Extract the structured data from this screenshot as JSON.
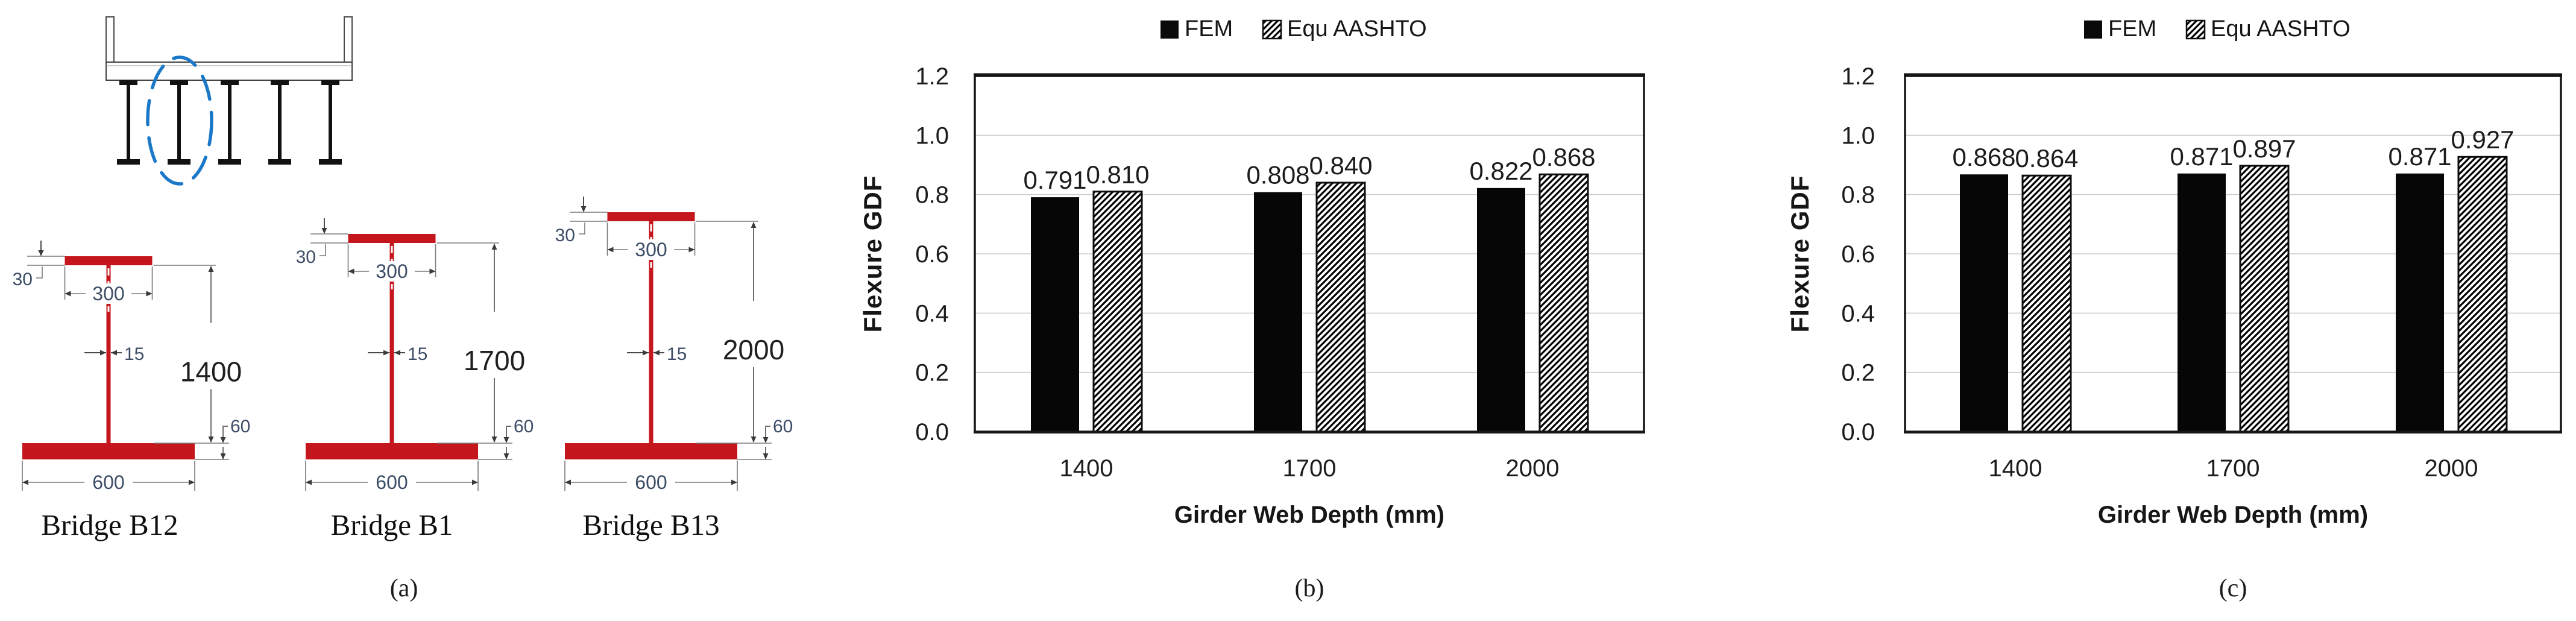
{
  "figure": {
    "background": "#ffffff"
  },
  "panel_a": {
    "caption": "(a)",
    "cross_section": {
      "description": "bridge-deck-cross-section-with-five-steel-i-girders",
      "girder_count": 5,
      "highlighted_girder": 2,
      "highlight_color": "#1b78c8"
    },
    "steel_color": "#c4161c",
    "dim_text_color": "#3d4d66",
    "depth_text_color": "#1f1f1f",
    "beams": [
      {
        "name": "Bridge B12",
        "web_depth_label": "1400",
        "top_flange_width_label": "300",
        "top_flange_thickness_label": "30",
        "web_thickness_label": "15",
        "bottom_flange_thickness_label": "60",
        "bottom_flange_width_label": "600"
      },
      {
        "name": "Bridge B1",
        "web_depth_label": "1700",
        "top_flange_width_label": "300",
        "top_flange_thickness_label": "30",
        "web_thickness_label": "15",
        "bottom_flange_thickness_label": "60",
        "bottom_flange_width_label": "600"
      },
      {
        "name": "Bridge B13",
        "web_depth_label": "2000",
        "top_flange_width_label": "300",
        "top_flange_thickness_label": "30",
        "web_thickness_label": "15",
        "bottom_flange_thickness_label": "60",
        "bottom_flange_width_label": "600"
      }
    ]
  },
  "chart_data": [
    {
      "id": "b",
      "type": "bar",
      "caption": "(b)",
      "categories": [
        "1400",
        "1700",
        "2000"
      ],
      "series": [
        {
          "name": "FEM",
          "pattern": "solid",
          "values": [
            0.791,
            0.808,
            0.822
          ]
        },
        {
          "name": "Equ AASHTO",
          "pattern": "hatch",
          "values": [
            0.81,
            0.84,
            0.868
          ]
        }
      ],
      "xlabel": "Girder Web Depth (mm)",
      "ylabel": "Flexure GDF",
      "ylim": [
        0.0,
        1.2
      ],
      "ytick_step": 0.2,
      "grid": true,
      "legend_position": "top",
      "value_label_decimals": 3
    },
    {
      "id": "c",
      "type": "bar",
      "caption": "(c)",
      "categories": [
        "1400",
        "1700",
        "2000"
      ],
      "series": [
        {
          "name": "FEM",
          "pattern": "solid",
          "values": [
            0.868,
            0.871,
            0.871
          ]
        },
        {
          "name": "Equ AASHTO",
          "pattern": "hatch",
          "values": [
            0.864,
            0.897,
            0.927
          ]
        }
      ],
      "xlabel": "Girder Web Depth (mm)",
      "ylabel": "Flexure GDF",
      "ylim": [
        0.0,
        1.2
      ],
      "ytick_step": 0.2,
      "grid": true,
      "legend_position": "top",
      "value_label_decimals": 3
    }
  ]
}
